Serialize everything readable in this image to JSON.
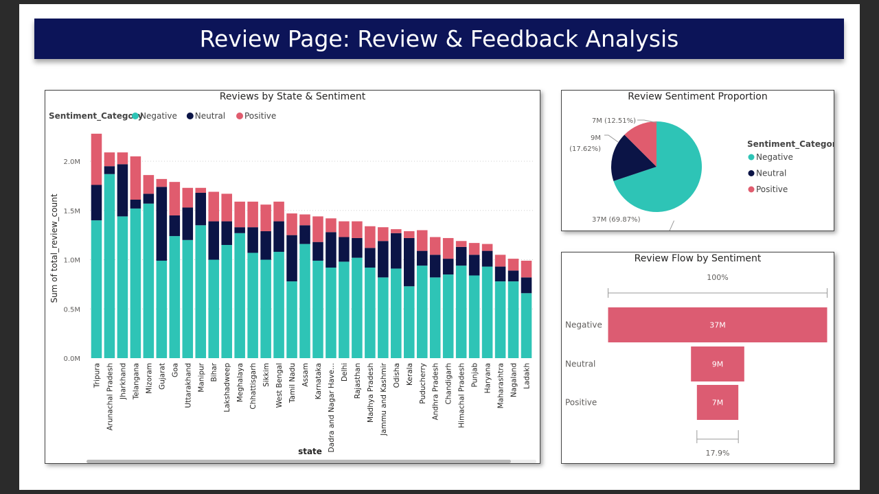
{
  "header": {
    "title": "Review Page: Review & Feedback Analysis"
  },
  "colors": {
    "Negative": "#2ec4b6",
    "Neutral": "#0b1446",
    "Positive": "#e05c6e",
    "funnel": "#dc5c72",
    "header_bg": "#0c1458"
  },
  "chart_data": [
    {
      "type": "bar",
      "stacked": true,
      "title": "Reviews by State & Sentiment",
      "xlabel": "state",
      "ylabel": "Sum of total_review_count",
      "legend": {
        "title": "Sentiment_Category",
        "position": "top-left",
        "entries": [
          "Negative",
          "Neutral",
          "Positive"
        ]
      },
      "ylim": [
        0,
        2300000
      ],
      "yticks": [
        {
          "value": 0,
          "label": "0.0M"
        },
        {
          "value": 500000,
          "label": "0.5M"
        },
        {
          "value": 1000000,
          "label": "1.0M"
        },
        {
          "value": 1500000,
          "label": "1.5M"
        },
        {
          "value": 2000000,
          "label": "2.0M"
        }
      ],
      "grid": true,
      "categories": [
        "Tripura",
        "Arunachal Pradesh",
        "Jharkhand",
        "Telangana",
        "Mizoram",
        "Gujarat",
        "Goa",
        "Uttarakhand",
        "Manipur",
        "Bihar",
        "Lakshadweep",
        "Meghalaya",
        "Chhattisgarh",
        "Sikkim",
        "West Bengal",
        "Tamil Nadu",
        "Assam",
        "Karnataka",
        "Dadra and Nagar Have...",
        "Delhi",
        "Rajasthan",
        "Madhya Pradesh",
        "Jammu and Kashmir",
        "Odisha",
        "Kerala",
        "Puducherry",
        "Andhra Pradesh",
        "Chandigarh",
        "Himachal Pradesh",
        "Punjab",
        "Haryana",
        "Maharashtra",
        "Nagaland",
        "Ladakh"
      ],
      "series": [
        {
          "name": "Negative",
          "values": [
            1400000,
            1870000,
            1440000,
            1520000,
            1570000,
            990000,
            1240000,
            1200000,
            1350000,
            1000000,
            1150000,
            1270000,
            1070000,
            1000000,
            1080000,
            780000,
            1160000,
            990000,
            920000,
            980000,
            1020000,
            920000,
            820000,
            910000,
            730000,
            940000,
            820000,
            850000,
            940000,
            840000,
            930000,
            780000,
            780000,
            660000
          ]
        },
        {
          "name": "Neutral",
          "values": [
            360000,
            80000,
            530000,
            90000,
            100000,
            750000,
            210000,
            330000,
            330000,
            390000,
            240000,
            60000,
            260000,
            290000,
            310000,
            470000,
            190000,
            190000,
            360000,
            250000,
            200000,
            200000,
            370000,
            360000,
            490000,
            150000,
            230000,
            160000,
            190000,
            210000,
            160000,
            150000,
            110000,
            160000
          ]
        },
        {
          "name": "Positive",
          "values": [
            520000,
            140000,
            120000,
            440000,
            190000,
            80000,
            340000,
            200000,
            50000,
            300000,
            280000,
            260000,
            260000,
            270000,
            200000,
            220000,
            110000,
            260000,
            140000,
            160000,
            170000,
            220000,
            140000,
            40000,
            70000,
            210000,
            180000,
            210000,
            60000,
            120000,
            70000,
            120000,
            120000,
            170000
          ]
        }
      ]
    },
    {
      "type": "pie",
      "title": "Review Sentiment Proportion",
      "legend": {
        "title": "Sentiment_Category",
        "position": "right",
        "entries": [
          "Negative",
          "Neutral",
          "Positive"
        ]
      },
      "slices": [
        {
          "name": "Negative",
          "value": 69.87,
          "label": "37M (69.87%)"
        },
        {
          "name": "Neutral",
          "value": 17.62,
          "label": "9M (17.62%)"
        },
        {
          "name": "Positive",
          "value": 12.51,
          "label": "7M (12.51%)"
        }
      ]
    },
    {
      "type": "funnel",
      "title": "Review Flow by Sentiment",
      "top_percent_label": "100%",
      "bottom_percent_label": "17.9%",
      "stages": [
        {
          "name": "Negative",
          "value": 37,
          "label": "37M"
        },
        {
          "name": "Neutral",
          "value": 9,
          "label": "9M"
        },
        {
          "name": "Positive",
          "value": 7,
          "label": "7M"
        }
      ]
    }
  ]
}
